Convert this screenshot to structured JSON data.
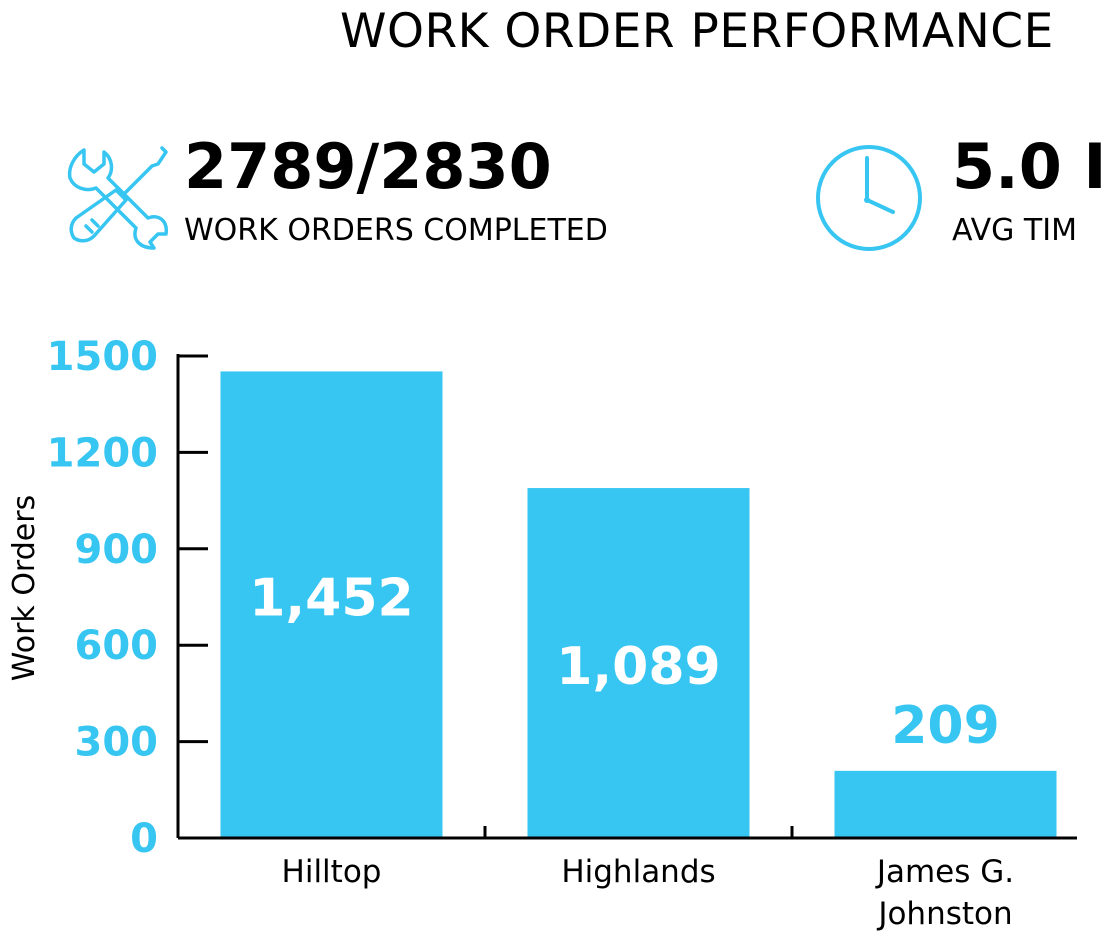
{
  "header": {
    "title": "WORK ORDER PERFORMANCE"
  },
  "stats": [
    {
      "icon": "wrench-screwdriver-icon",
      "value": "2789/2830",
      "label": "WORK ORDERS COMPLETED"
    },
    {
      "icon": "clock-icon",
      "value": "5.0 I",
      "label": "AVG TIM"
    }
  ],
  "colors": {
    "accent": "#37c5f1",
    "bar_label_inside": "#ffffff",
    "text": "#000000"
  },
  "chart_data": {
    "type": "bar",
    "categories": [
      "Hilltop",
      "Highlands",
      "James G. Johnston"
    ],
    "values": [
      1452,
      1089,
      209
    ],
    "data_labels": [
      "1,452",
      "1,089",
      "209"
    ],
    "title": "",
    "xlabel": "",
    "ylabel": "Work Orders",
    "ylim": [
      0,
      1500
    ],
    "yticks": [
      0,
      300,
      600,
      900,
      1200,
      1500
    ],
    "grid": false,
    "legend": "none"
  }
}
